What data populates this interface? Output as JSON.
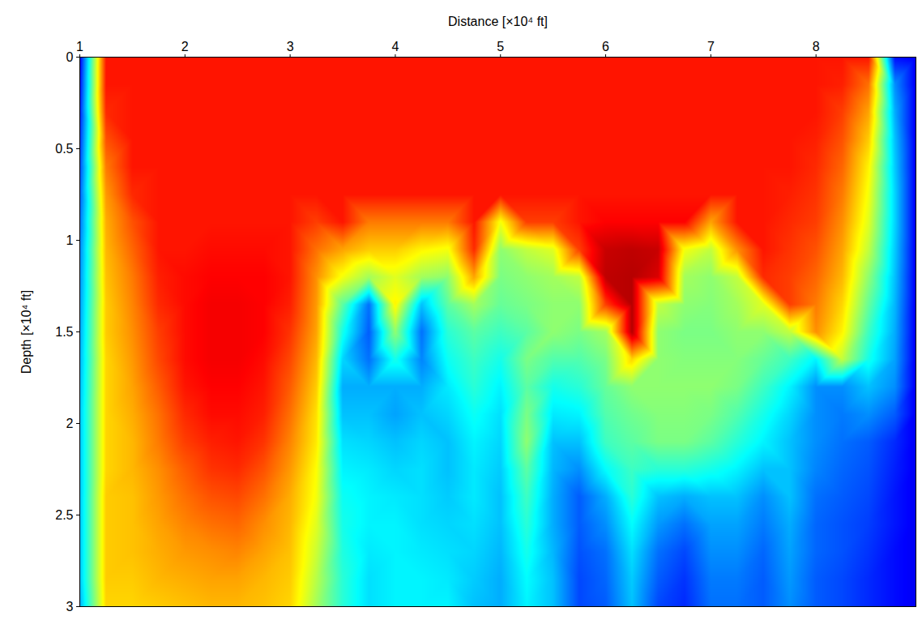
{
  "chart_data": {
    "type": "heatmap",
    "x_label": "Distance [×10⁴ ft]",
    "y_label": "Depth [×10⁴ ft]",
    "xlim": [
      1,
      8.95
    ],
    "ylim": [
      0,
      3
    ],
    "xticks": [
      1,
      2,
      3,
      4,
      5,
      6,
      7,
      8
    ],
    "yticks": [
      0,
      0.5,
      1,
      1.5,
      2,
      2.5,
      3
    ],
    "zlim": [
      0,
      100
    ],
    "grid": false,
    "x": [
      1.0,
      1.25,
      1.5,
      1.75,
      2.0,
      2.25,
      2.5,
      2.75,
      3.0,
      3.25,
      3.5,
      3.75,
      4.0,
      4.25,
      4.5,
      4.75,
      5.0,
      5.25,
      5.5,
      5.75,
      6.0,
      6.25,
      6.5,
      6.75,
      7.0,
      7.25,
      7.5,
      7.75,
      8.0,
      8.25,
      8.5,
      8.75,
      8.95
    ],
    "y": [
      0,
      0.15,
      0.3,
      0.45,
      0.6,
      0.75,
      0.9,
      1.05,
      1.2,
      1.35,
      1.5,
      1.65,
      1.8,
      1.95,
      2.1,
      2.25,
      2.4,
      2.55,
      2.7,
      2.85,
      3.0
    ],
    "values": [
      [
        10,
        12,
        14,
        16,
        18,
        20,
        22,
        24,
        25,
        26,
        27,
        28,
        29,
        30,
        30,
        30,
        30,
        30,
        30,
        30,
        28
      ],
      [
        84,
        84,
        82,
        78,
        74,
        71,
        69,
        68,
        67,
        66,
        66,
        65,
        65,
        65,
        65,
        65,
        66,
        66,
        66,
        66,
        65
      ],
      [
        84,
        84,
        84,
        84,
        84,
        82,
        78,
        76,
        74,
        73,
        72,
        71,
        70,
        69,
        68,
        68,
        67,
        67,
        67,
        66,
        65
      ],
      [
        84,
        84,
        84,
        84,
        84,
        84,
        84,
        84,
        83,
        82,
        80,
        79,
        77,
        75,
        74,
        72,
        71,
        70,
        69,
        68,
        66
      ],
      [
        84,
        84,
        84,
        84,
        84,
        84,
        84,
        84,
        85,
        85,
        85,
        85,
        84,
        82,
        80,
        77,
        75,
        73,
        71,
        69,
        67
      ],
      [
        84,
        84,
        84,
        84,
        84,
        84,
        84,
        85,
        86,
        87,
        87,
        87,
        86,
        85,
        83,
        81,
        78,
        75,
        72,
        70,
        68
      ],
      [
        84,
        84,
        84,
        84,
        84,
        84,
        84,
        85,
        86,
        87,
        87,
        87,
        86,
        85,
        84,
        82,
        79,
        76,
        73,
        70,
        68
      ],
      [
        84,
        84,
        84,
        84,
        84,
        84,
        84,
        85,
        86,
        86,
        86,
        85,
        84,
        83,
        81,
        78,
        75,
        72,
        70,
        68,
        67
      ],
      [
        84,
        84,
        84,
        84,
        84,
        84,
        84,
        84,
        84,
        83,
        81,
        79,
        77,
        75,
        73,
        71,
        69,
        68,
        67,
        66,
        65
      ],
      [
        84,
        84,
        84,
        84,
        84,
        84,
        80,
        75,
        72,
        71,
        70,
        68,
        66,
        64,
        63,
        61,
        60,
        58,
        56,
        54,
        52
      ],
      [
        84,
        84,
        84,
        84,
        84,
        84,
        84,
        70,
        60,
        45,
        38,
        32,
        28,
        30,
        33,
        35,
        37,
        38,
        39,
        40,
        40
      ],
      [
        84,
        84,
        84,
        84,
        84,
        84,
        74,
        66,
        52,
        22,
        20,
        22,
        28,
        30,
        32,
        34,
        35,
        35,
        34,
        33,
        33
      ],
      [
        84,
        84,
        84,
        84,
        84,
        84,
        74,
        66,
        58,
        62,
        50,
        38,
        28,
        27,
        30,
        32,
        34,
        35,
        35,
        35,
        35
      ],
      [
        84,
        84,
        84,
        84,
        84,
        84,
        74,
        62,
        52,
        30,
        22,
        24,
        28,
        30,
        32,
        33,
        33,
        33,
        34,
        35,
        35
      ],
      [
        84,
        84,
        84,
        84,
        84,
        84,
        74,
        60,
        50,
        45,
        40,
        37,
        34,
        32,
        30,
        30,
        31,
        32,
        33,
        34,
        35
      ],
      [
        84,
        84,
        84,
        84,
        84,
        84,
        84,
        82,
        70,
        52,
        45,
        42,
        40,
        37,
        35,
        34,
        34,
        33,
        32,
        31,
        30
      ],
      [
        84,
        84,
        84,
        84,
        84,
        84,
        60,
        50,
        48,
        46,
        42,
        38,
        35,
        33,
        32,
        31,
        30,
        30,
        29,
        28,
        28
      ],
      [
        84,
        84,
        84,
        84,
        84,
        84,
        80,
        55,
        50,
        48,
        45,
        48,
        45,
        48,
        50,
        45,
        42,
        40,
        38,
        36,
        35
      ],
      [
        84,
        84,
        84,
        84,
        84,
        84,
        80,
        58,
        52,
        50,
        50,
        44,
        38,
        34,
        30,
        29,
        28,
        28,
        29,
        30,
        30
      ],
      [
        84,
        84,
        84,
        84,
        84,
        84,
        84,
        80,
        55,
        50,
        48,
        44,
        40,
        35,
        30,
        25,
        20,
        20,
        19,
        18,
        18
      ],
      [
        84,
        84,
        84,
        84,
        84,
        84,
        86,
        92,
        93,
        80,
        52,
        48,
        46,
        44,
        42,
        36,
        28,
        25,
        22,
        21,
        20
      ],
      [
        84,
        84,
        84,
        84,
        84,
        84,
        86,
        93,
        94,
        94,
        94,
        65,
        50,
        47,
        45,
        42,
        40,
        36,
        33,
        31,
        30
      ],
      [
        84,
        84,
        84,
        84,
        84,
        84,
        86,
        92,
        90,
        55,
        50,
        50,
        50,
        49,
        48,
        40,
        30,
        26,
        22,
        20,
        18
      ],
      [
        84,
        84,
        84,
        84,
        84,
        84,
        86,
        60,
        52,
        50,
        48,
        49,
        50,
        49,
        48,
        40,
        28,
        22,
        18,
        16,
        15
      ],
      [
        84,
        84,
        84,
        84,
        84,
        84,
        70,
        55,
        50,
        49,
        48,
        49,
        50,
        48,
        45,
        38,
        30,
        27,
        25,
        23,
        22
      ],
      [
        84,
        84,
        84,
        84,
        84,
        84,
        84,
        72,
        55,
        52,
        50,
        49,
        48,
        44,
        40,
        35,
        30,
        27,
        25,
        23,
        22
      ],
      [
        84,
        84,
        84,
        84,
        84,
        84,
        84,
        84,
        82,
        58,
        50,
        46,
        42,
        38,
        35,
        30,
        25,
        23,
        21,
        20,
        20
      ],
      [
        84,
        84,
        84,
        84,
        84,
        83,
        82,
        81,
        80,
        80,
        55,
        42,
        35,
        32,
        30,
        30,
        30,
        28,
        27,
        26,
        25
      ],
      [
        84,
        84,
        84,
        83,
        82,
        81,
        80,
        78,
        76,
        74,
        72,
        35,
        25,
        25,
        25,
        24,
        22,
        21,
        21,
        20,
        20
      ],
      [
        84,
        83,
        80,
        78,
        76,
        74,
        72,
        70,
        68,
        65,
        62,
        55,
        25,
        23,
        22,
        21,
        20,
        19,
        19,
        18,
        18
      ],
      [
        84,
        75,
        70,
        66,
        62,
        60,
        58,
        55,
        50,
        46,
        42,
        38,
        30,
        25,
        20,
        19,
        18,
        17,
        16,
        15,
        15
      ],
      [
        12,
        25,
        28,
        30,
        31,
        32,
        32,
        31,
        30,
        29,
        28,
        27,
        25,
        20,
        15,
        14,
        13,
        13,
        12,
        12,
        12
      ],
      [
        10,
        10,
        10,
        10,
        10,
        10,
        10,
        10,
        10,
        10,
        10,
        10,
        10,
        10,
        10,
        10,
        10,
        10,
        10,
        10,
        10
      ]
    ]
  }
}
